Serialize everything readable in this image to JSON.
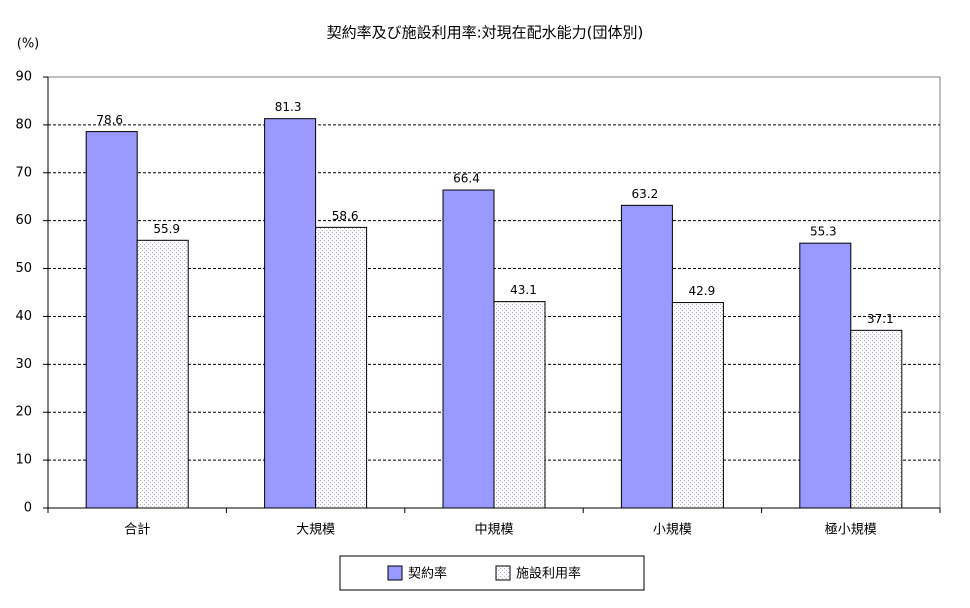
{
  "chart_data": {
    "type": "bar",
    "title": "契約率及び施設利用率:対現在配水能力(団体別)",
    "y_label": "(%)",
    "categories": [
      "合計",
      "大規模",
      "中規模",
      "小規模",
      "極小規模"
    ],
    "series": [
      {
        "name": "契約率",
        "color": "#9999ff",
        "values": [
          78.6,
          81.3,
          66.4,
          63.2,
          55.3
        ]
      },
      {
        "name": "施設利用率",
        "color": "#b0b0c8",
        "pattern": "dots",
        "values": [
          55.9,
          58.6,
          43.1,
          42.9,
          37.1
        ]
      }
    ],
    "ylim": [
      0,
      90
    ],
    "yticks": [
      0,
      10,
      20,
      30,
      40,
      50,
      60,
      70,
      80,
      90
    ],
    "grid": true,
    "legend": "bottom"
  }
}
